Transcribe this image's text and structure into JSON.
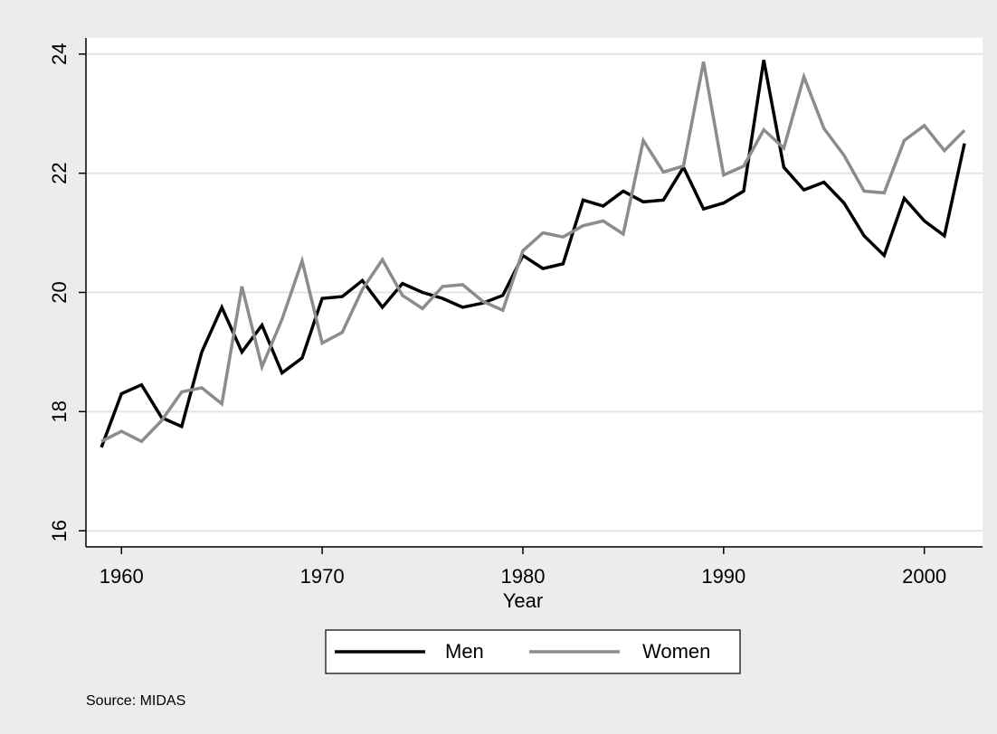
{
  "chart_data": {
    "type": "line",
    "x_label": "Year",
    "note": "Source: MIDAS",
    "x": [
      1959,
      1960,
      1961,
      1962,
      1963,
      1964,
      1965,
      1966,
      1967,
      1968,
      1969,
      1970,
      1971,
      1972,
      1973,
      1974,
      1975,
      1976,
      1977,
      1978,
      1979,
      1980,
      1981,
      1982,
      1983,
      1984,
      1985,
      1986,
      1987,
      1988,
      1989,
      1990,
      1991,
      1992,
      1993,
      1994,
      1995,
      1996,
      1997,
      1998,
      1999,
      2000,
      2001,
      2002
    ],
    "series": [
      {
        "name": "Men",
        "color": "#000000",
        "values": [
          17.4,
          18.3,
          18.45,
          17.9,
          17.75,
          19.0,
          19.75,
          19.0,
          19.45,
          18.65,
          18.9,
          19.9,
          19.93,
          20.2,
          19.75,
          20.15,
          20.0,
          19.9,
          19.75,
          19.82,
          19.95,
          20.62,
          20.4,
          20.48,
          21.55,
          21.45,
          21.7,
          21.52,
          21.55,
          22.1,
          21.4,
          21.5,
          21.7,
          23.9,
          22.1,
          21.72,
          21.85,
          21.5,
          20.95,
          20.62,
          21.58,
          21.2,
          20.95,
          22.5
        ]
      },
      {
        "name": "Women",
        "color": "#8c8c8c",
        "values": [
          17.5,
          17.67,
          17.5,
          17.85,
          18.33,
          18.4,
          18.13,
          20.1,
          18.75,
          19.55,
          20.53,
          19.15,
          19.33,
          20.05,
          20.55,
          19.95,
          19.73,
          20.1,
          20.13,
          19.85,
          19.7,
          20.7,
          21.0,
          20.93,
          21.12,
          21.2,
          20.98,
          22.55,
          22.02,
          22.12,
          23.87,
          21.97,
          22.12,
          22.73,
          22.42,
          23.62,
          22.75,
          22.3,
          21.7,
          21.67,
          22.55,
          22.8,
          22.38,
          22.72
        ]
      }
    ],
    "xlim": [
      1958.23,
      2002.9
    ],
    "ylim": [
      15.73,
      24.27
    ],
    "xticks": [
      1960,
      1970,
      1980,
      1990,
      2000
    ],
    "yticks": [
      16,
      18,
      20,
      22,
      24
    ],
    "grid": true,
    "legend": "bottom"
  }
}
